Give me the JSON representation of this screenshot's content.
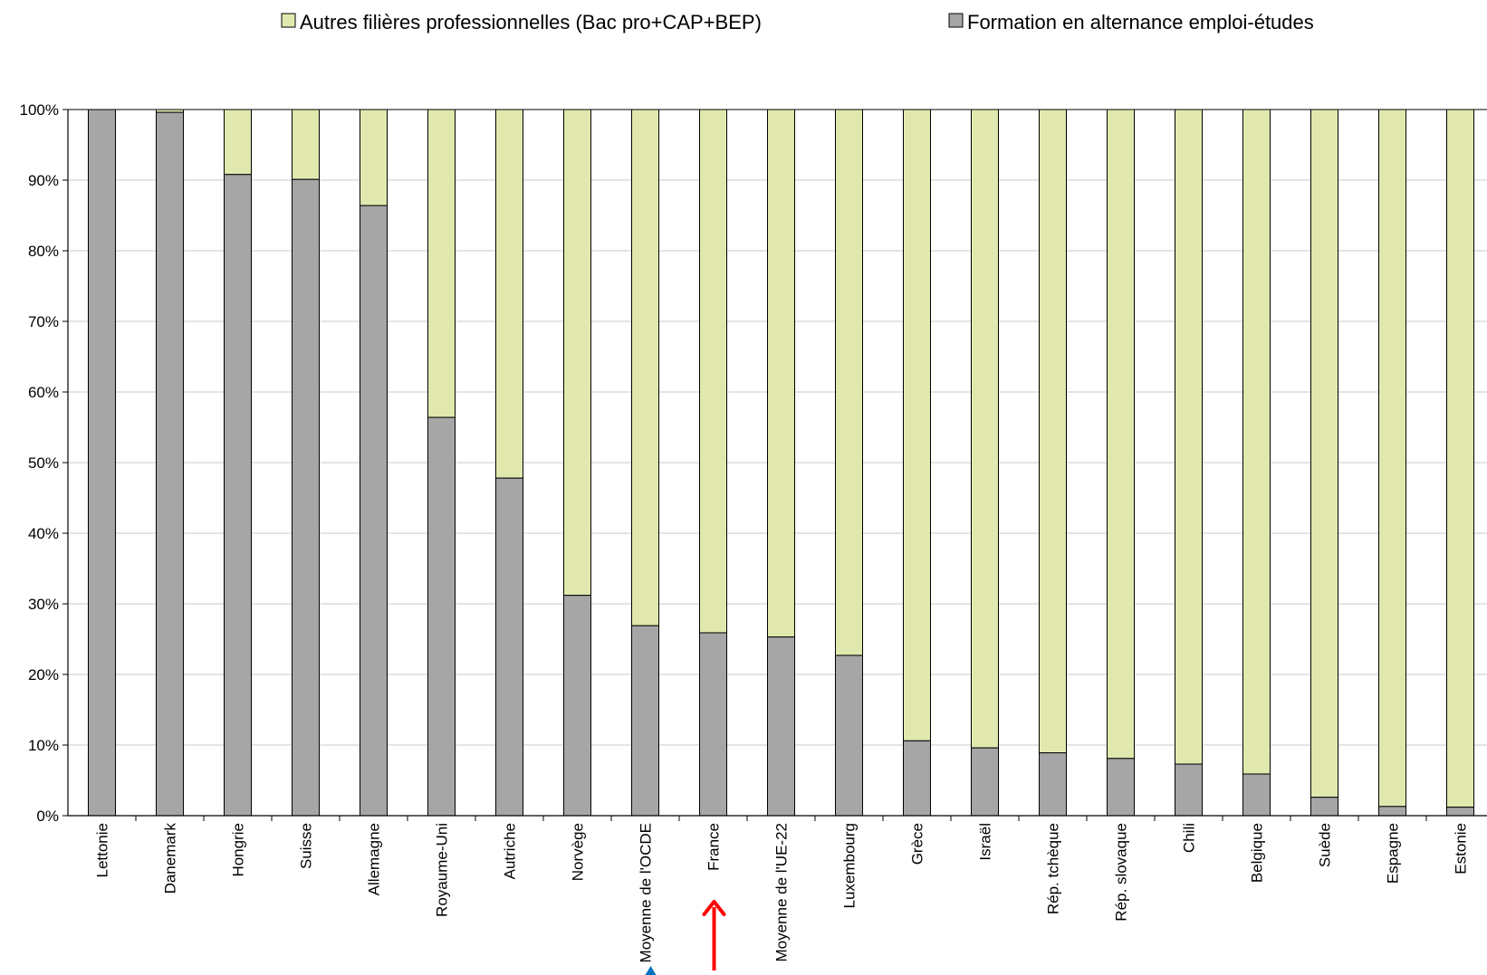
{
  "chart_data": {
    "type": "bar",
    "stacked": true,
    "percent": true,
    "categories": [
      "Lettonie",
      "Danemark",
      "Hongrie",
      "Suisse",
      "Allemagne",
      "Royaume-Uni",
      "Autriche",
      "Norvège",
      "Moyenne de l'OCDE",
      "France",
      "Moyenne de l'UE-22",
      "Luxembourg",
      "Grèce",
      "Israël",
      "Rép. tchèque",
      "Rép. slovaque",
      "Chili",
      "Belgique",
      "Suède",
      "Espagne",
      "Estonie"
    ],
    "series": [
      {
        "name": "Formation en alternance emploi-études",
        "color": "#a6a6a6",
        "values": [
          100,
          99.6,
          90.8,
          90.1,
          86.4,
          56.4,
          47.8,
          31.2,
          26.9,
          25.9,
          25.3,
          22.7,
          10.6,
          9.6,
          8.9,
          8.1,
          7.3,
          5.9,
          2.6,
          1.3,
          1.2
        ]
      },
      {
        "name": "Autres filières professionnelles (Bac pro+CAP+BEP)",
        "color": "#e1e8ae",
        "values": [
          0,
          0.4,
          9.2,
          9.9,
          13.6,
          43.6,
          52.2,
          68.8,
          73.1,
          74.1,
          74.7,
          77.3,
          89.4,
          90.4,
          91.1,
          91.9,
          92.7,
          94.1,
          97.4,
          98.7,
          98.8
        ]
      }
    ],
    "yticks": [
      "0%",
      "10%",
      "20%",
      "30%",
      "40%",
      "50%",
      "60%",
      "70%",
      "80%",
      "90%",
      "100%"
    ],
    "ylim": [
      0,
      100
    ],
    "grid": true,
    "legend_position": "top",
    "highlight": {
      "category": "France",
      "marker": "red-arrow",
      "color": "#ff0000"
    },
    "secondary_marker": {
      "category": "Moyenne de l'OCDE",
      "marker": "blue-arrow",
      "color": "#0070c0"
    }
  }
}
